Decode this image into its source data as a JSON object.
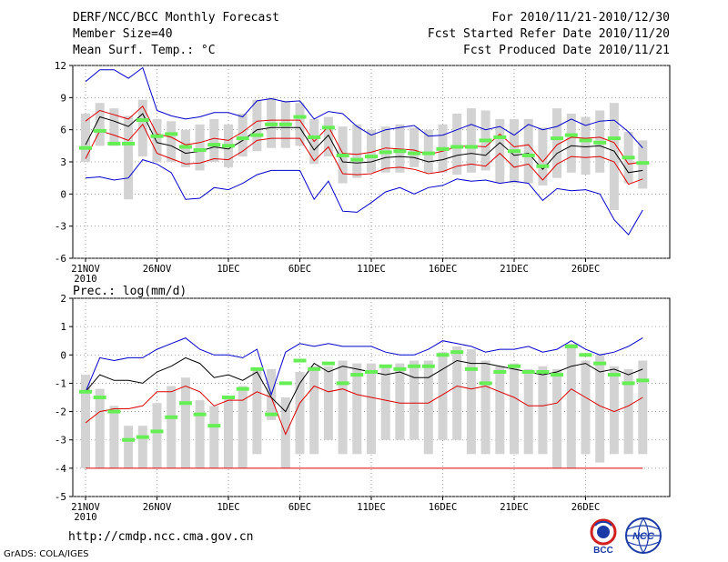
{
  "header": {
    "title": "DERF/NCC/BCC Monthly Forecast",
    "member_size": "Member Size=40",
    "variable": "Mean Surf. Temp.: °C",
    "forecast_period": "For 2010/11/21-2010/12/30",
    "fcst_started": "Fcst Started Refer Date 2010/11/20",
    "fcst_produced": "Fcst Produced Date 2010/11/21"
  },
  "footer": {
    "url": "http://cmdp.ncc.cma.gov.cn",
    "grads_credit": "GrADS: COLA/IGES",
    "logo_left_text": "BCC",
    "logo_right_text": "NCC"
  },
  "colors": {
    "max_line": "#0000cc",
    "mean_line": "#000000",
    "min_line": "#dd0000",
    "box": "#d3d3d3",
    "observation": "#66ee55",
    "grid": "#888888"
  },
  "chart_data": [
    {
      "type": "box-line",
      "title": "Mean Surf. Temp.: °C",
      "xlabel": "",
      "ylabel": "°C",
      "ylim": [
        -6,
        12
      ],
      "yticks": [
        "12",
        "9",
        "6",
        "3",
        "0",
        "-3",
        "-6"
      ],
      "xticks": [
        "21NOV",
        "26NOV",
        "1DEC",
        "6DEC",
        "11DEC",
        "16DEC",
        "21DEC",
        "26DEC"
      ],
      "xtick_days": [
        0,
        5,
        10,
        15,
        20,
        25,
        30,
        35
      ],
      "year_label": "2010",
      "days": 40,
      "series": [
        {
          "name": "max",
          "values": [
            10.5,
            11.6,
            11.6,
            10.8,
            11.8,
            7.8,
            7.3,
            7.0,
            7.2,
            7.6,
            7.6,
            7.2,
            8.7,
            8.9,
            8.6,
            8.7,
            7.0,
            7.7,
            7.5,
            6.3,
            5.5,
            6.0,
            6.2,
            6.4,
            5.4,
            5.5,
            6.0,
            6.5,
            6.0,
            6.3,
            5.5,
            6.5,
            6.0,
            6.3,
            7.0,
            6.4,
            6.8,
            6.9,
            5.8,
            4.3
          ]
        },
        {
          "name": "mean",
          "values": [
            4.6,
            7.2,
            6.8,
            6.3,
            7.5,
            4.8,
            4.5,
            3.8,
            4.0,
            4.4,
            4.2,
            5.0,
            6.0,
            6.2,
            6.2,
            6.2,
            4.1,
            5.5,
            3.0,
            2.9,
            3.0,
            3.4,
            3.5,
            3.4,
            3.0,
            3.2,
            3.6,
            3.8,
            3.6,
            4.8,
            3.6,
            3.8,
            2.3,
            3.8,
            4.5,
            4.4,
            4.5,
            4.0,
            2.0,
            2.2
          ]
        },
        {
          "name": "upper_red",
          "values": [
            6.8,
            7.8,
            7.4,
            7.0,
            8.2,
            5.6,
            5.3,
            4.6,
            4.8,
            5.2,
            5.0,
            5.8,
            6.8,
            6.9,
            6.9,
            6.9,
            4.9,
            6.3,
            3.8,
            3.7,
            3.9,
            4.3,
            4.2,
            4.1,
            3.7,
            4.0,
            4.4,
            4.5,
            4.4,
            5.6,
            4.4,
            4.6,
            3.0,
            4.6,
            5.3,
            5.2,
            5.3,
            4.8,
            2.8,
            3.0
          ]
        },
        {
          "name": "lower_red",
          "values": [
            3.3,
            5.9,
            5.5,
            5.0,
            6.5,
            3.8,
            3.3,
            2.8,
            2.9,
            3.3,
            3.2,
            4.0,
            5.0,
            5.2,
            5.2,
            5.2,
            3.1,
            4.4,
            1.9,
            1.8,
            1.9,
            2.4,
            2.5,
            2.3,
            1.9,
            2.1,
            2.6,
            2.8,
            2.6,
            3.8,
            2.5,
            2.8,
            1.3,
            2.8,
            3.5,
            3.4,
            3.5,
            3.0,
            0.9,
            1.4
          ]
        },
        {
          "name": "min",
          "values": [
            1.5,
            1.6,
            1.3,
            1.5,
            3.2,
            2.8,
            2.0,
            -0.5,
            -0.4,
            0.6,
            0.4,
            1.0,
            1.8,
            2.2,
            2.2,
            2.2,
            -0.5,
            1.2,
            -1.6,
            -1.7,
            -0.8,
            0.2,
            0.6,
            0.0,
            0.6,
            0.8,
            1.4,
            1.2,
            1.3,
            1.0,
            1.2,
            1.0,
            -0.6,
            0.5,
            0.3,
            0.4,
            0.0,
            -2.4,
            -3.8,
            -1.5
          ]
        },
        {
          "name": "box_top",
          "values": [
            7.5,
            8.5,
            8.0,
            7.3,
            8.8,
            7.0,
            6.8,
            6.0,
            6.5,
            7.0,
            6.5,
            7.5,
            8.8,
            9.0,
            8.7,
            8.5,
            7.0,
            7.2,
            6.3,
            6.5,
            6.0,
            6.3,
            6.5,
            6.2,
            6.0,
            6.5,
            7.5,
            8.0,
            7.8,
            7.0,
            7.0,
            7.0,
            6.2,
            8.0,
            7.5,
            7.2,
            7.8,
            8.5,
            5.8,
            5.0
          ]
        },
        {
          "name": "box_bottom",
          "values": [
            3.0,
            4.5,
            4.5,
            -0.5,
            3.5,
            3.0,
            3.0,
            2.5,
            2.2,
            3.0,
            2.5,
            3.5,
            4.0,
            4.3,
            4.3,
            4.5,
            2.8,
            3.5,
            1.0,
            1.5,
            2.0,
            2.0,
            2.0,
            2.5,
            2.0,
            2.0,
            1.8,
            2.0,
            2.2,
            1.0,
            1.0,
            1.0,
            0.8,
            1.5,
            2.0,
            1.8,
            2.0,
            -1.5,
            1.0,
            0.5
          ]
        },
        {
          "name": "observation",
          "values": [
            4.3,
            5.9,
            4.7,
            4.7,
            6.9,
            5.4,
            5.6,
            4.4,
            4.1,
            4.6,
            4.5,
            5.2,
            5.5,
            6.5,
            6.5,
            7.2,
            5.3,
            6.2,
            3.6,
            3.2,
            3.5,
            3.9,
            4.0,
            3.8,
            3.8,
            4.2,
            4.4,
            4.4,
            5.0,
            5.3,
            4.0,
            3.6,
            2.6,
            5.2,
            5.5,
            5.0,
            4.8,
            5.2,
            3.4,
            2.9
          ]
        }
      ]
    },
    {
      "type": "box-line",
      "title": "Prec.: log(mm/d)",
      "xlabel": "",
      "ylabel": "log(mm/d)",
      "ylim": [
        -5,
        2
      ],
      "yticks": [
        "2",
        "1",
        "0",
        "-1",
        "-2",
        "-3",
        "-4",
        "-5"
      ],
      "xticks": [
        "21NOV",
        "26NOV",
        "1DEC",
        "6DEC",
        "11DEC",
        "16DEC",
        "21DEC",
        "26DEC"
      ],
      "xtick_days": [
        0,
        5,
        10,
        15,
        20,
        25,
        30,
        35
      ],
      "year_label": "2010",
      "days": 40,
      "series": [
        {
          "name": "max",
          "values": [
            -1.3,
            -0.1,
            -0.2,
            -0.1,
            -0.1,
            0.2,
            0.4,
            0.6,
            0.2,
            0.0,
            0.0,
            -0.1,
            0.2,
            -1.4,
            0.1,
            0.4,
            0.3,
            0.4,
            0.3,
            0.3,
            0.3,
            0.1,
            0.0,
            0.0,
            0.2,
            0.5,
            0.4,
            0.3,
            0.1,
            0.2,
            0.2,
            0.3,
            0.1,
            0.2,
            0.5,
            0.2,
            0.0,
            0.1,
            0.3,
            0.6
          ]
        },
        {
          "name": "mean",
          "values": [
            -1.3,
            -0.7,
            -0.9,
            -0.9,
            -1.0,
            -0.6,
            -0.4,
            -0.1,
            -0.3,
            -0.8,
            -0.7,
            -0.9,
            -0.6,
            -1.5,
            -2.0,
            -1.0,
            -0.3,
            -0.6,
            -0.4,
            -0.5,
            -0.6,
            -0.7,
            -0.6,
            -0.8,
            -0.8,
            -0.5,
            -0.2,
            -0.3,
            -0.3,
            -0.4,
            -0.5,
            -0.6,
            -0.7,
            -0.6,
            -0.4,
            -0.3,
            -0.6,
            -0.5,
            -0.7,
            -0.5
          ]
        },
        {
          "name": "lower_red",
          "values": [
            -2.4,
            -2.0,
            -1.9,
            -1.9,
            -1.8,
            -1.3,
            -1.3,
            -1.1,
            -1.3,
            -1.8,
            -1.6,
            -1.6,
            -1.3,
            -1.5,
            -2.8,
            -1.7,
            -1.1,
            -1.3,
            -1.2,
            -1.4,
            -1.5,
            -1.6,
            -1.7,
            -1.7,
            -1.7,
            -1.4,
            -1.1,
            -1.2,
            -1.1,
            -1.3,
            -1.5,
            -1.8,
            -1.8,
            -1.7,
            -1.2,
            -1.5,
            -1.8,
            -2.0,
            -1.8,
            -1.5
          ]
        },
        {
          "name": "floor",
          "values": [
            -4.0,
            -4.0,
            -4.0,
            -4.0,
            -4.0,
            -4.0,
            -4.0,
            -4.0,
            -4.0,
            -4.0,
            -4.0,
            -4.0,
            -4.0,
            -4.0,
            -4.0,
            -4.0,
            -4.0,
            -4.0,
            -4.0,
            -4.0,
            -4.0,
            -4.0,
            -4.0,
            -4.0,
            -4.0,
            -4.0,
            -4.0,
            -4.0,
            -4.0,
            -4.0,
            -4.0,
            -4.0,
            -4.0,
            -4.0,
            -4.0,
            -4.0,
            -4.0,
            -4.0,
            -4.0,
            -4.0
          ]
        },
        {
          "name": "box_top",
          "values": [
            -0.7,
            -1.2,
            -1.8,
            -2.5,
            -2.5,
            -1.7,
            -1.1,
            -0.8,
            -1.6,
            -1.8,
            -1.5,
            -1.1,
            -0.5,
            -0.5,
            -1.5,
            -0.6,
            -0.4,
            -0.4,
            -0.2,
            -0.3,
            -0.3,
            -0.4,
            -0.3,
            -0.2,
            -0.2,
            0.1,
            0.3,
            0.2,
            -0.2,
            -0.4,
            -0.3,
            -0.5,
            -0.4,
            -0.5,
            0.4,
            -0.2,
            0.0,
            -0.4,
            -0.5,
            -0.2
          ]
        },
        {
          "name": "box_bottom",
          "values": [
            -4.0,
            -4.0,
            -4.0,
            -4.0,
            -4.0,
            -4.0,
            -4.0,
            -4.0,
            -4.0,
            -4.0,
            -4.0,
            -4.0,
            -3.5,
            -2.3,
            -4.0,
            -3.5,
            -3.5,
            -3.0,
            -3.5,
            -3.5,
            -3.5,
            -3.0,
            -3.0,
            -3.0,
            -3.5,
            -3.0,
            -3.0,
            -3.5,
            -3.5,
            -3.5,
            -3.5,
            -3.5,
            -3.5,
            -4.0,
            -4.0,
            -3.5,
            -3.8,
            -3.5,
            -3.5,
            -3.5
          ]
        },
        {
          "name": "observation",
          "values": [
            -1.3,
            -1.5,
            -2.0,
            -3.0,
            -2.9,
            -2.7,
            -2.2,
            -1.7,
            -2.1,
            -2.5,
            -1.5,
            -1.2,
            -0.5,
            -2.1,
            -1.0,
            -0.2,
            -0.5,
            -0.3,
            -1.0,
            -0.7,
            -0.6,
            -0.4,
            -0.5,
            -0.4,
            -0.4,
            0.0,
            0.1,
            -0.5,
            -1.0,
            -0.6,
            -0.4,
            -0.6,
            -0.6,
            -0.7,
            0.3,
            0.0,
            -0.3,
            -0.7,
            -1.0,
            -0.9
          ]
        }
      ]
    }
  ]
}
